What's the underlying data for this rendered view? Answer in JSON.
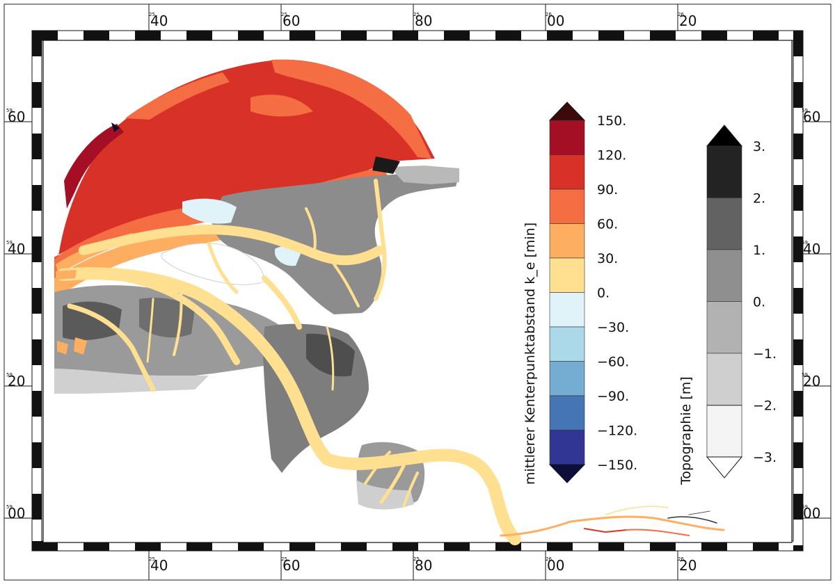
{
  "map": {
    "frame": {
      "top_ticks": [
        {
          "major": "40",
          "minor": "25"
        },
        {
          "major": "60",
          "minor": "25"
        },
        {
          "major": "80",
          "minor": "25"
        },
        {
          "major": "00",
          "minor": "26"
        },
        {
          "major": "20",
          "minor": "26"
        }
      ],
      "bottom_ticks": [
        {
          "major": "40",
          "minor": "25"
        },
        {
          "major": "60",
          "minor": "25"
        },
        {
          "major": "80",
          "minor": "25"
        },
        {
          "major": "00",
          "minor": "26"
        },
        {
          "major": "20",
          "minor": "26"
        }
      ],
      "left_ticks": [
        {
          "major": "60",
          "minor": "59"
        },
        {
          "major": "40",
          "minor": "59"
        },
        {
          "major": "20",
          "minor": "59"
        },
        {
          "major": "00",
          "minor": "59"
        }
      ],
      "right_ticks": [
        {
          "major": "60",
          "minor": "59"
        },
        {
          "major": "40",
          "minor": "59"
        },
        {
          "major": "20",
          "minor": "59"
        },
        {
          "major": "00",
          "minor": "59"
        }
      ]
    },
    "colorbar_time": {
      "title": "mittlerer Kenterpunktabstand k_e [min]",
      "labels": [
        "150.",
        "120.",
        "90.",
        "60.",
        "30.",
        "0.",
        "−30.",
        "−60.",
        "−90.",
        "−120.",
        "−150."
      ],
      "colors": [
        "#a50f26",
        "#d83228",
        "#f46d43",
        "#fdae61",
        "#fee090",
        "#e0f3f8",
        "#abd9e9",
        "#74add1",
        "#4575b4",
        "#313695"
      ],
      "over_color": "#3b0a0a",
      "under_color": "#0e0e3a"
    },
    "colorbar_topo": {
      "title": "Topographie [m]",
      "labels": [
        "3.",
        "2.",
        "1.",
        "0.",
        "−1.",
        "−2.",
        "−3."
      ],
      "colors": [
        "#232323",
        "#626262",
        "#8f8f8f",
        "#b2b2b2",
        "#cfcfcf",
        "#e3e3e3"
      ],
      "over_color": "#000000",
      "under_color": "#ffffff",
      "extra_band_color": "#f4f4f4"
    },
    "palette": {
      "deep_red": "#d83228",
      "orange": "#f46d43",
      "light_orange": "#fdae61",
      "sand": "#fee090",
      "pale_blue": "#e0f3f8",
      "grey_dark": "#5a5a5a",
      "grey_mid": "#8c8c8c",
      "grey_light": "#b9b9b9",
      "grey_pale": "#d9d9d9"
    }
  }
}
